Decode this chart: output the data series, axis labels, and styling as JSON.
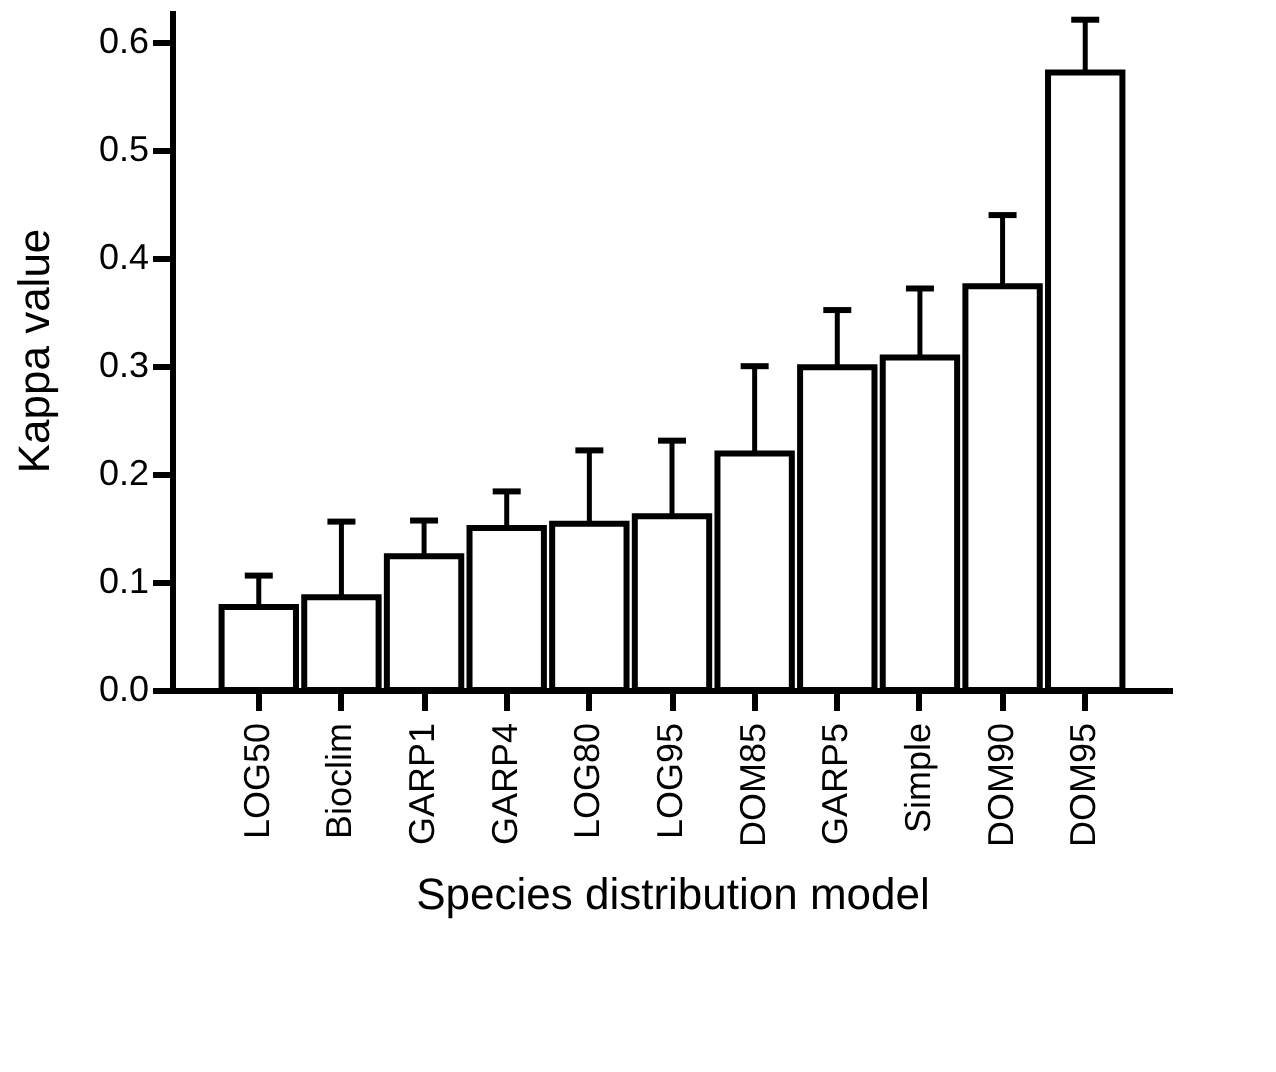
{
  "chart_data": {
    "type": "bar",
    "xlabel": "Species distribution model",
    "ylabel": "Kappa value",
    "categories": [
      "LOG50",
      "Bioclim",
      "GARP1",
      "GARP4",
      "LOG80",
      "LOG95",
      "DOM85",
      "GARP5",
      "Simple",
      "DOM90",
      "DOM95"
    ],
    "values": [
      0.077,
      0.086,
      0.124,
      0.15,
      0.154,
      0.161,
      0.219,
      0.299,
      0.308,
      0.374,
      0.572
    ],
    "errors": [
      [
        0.077,
        0.106
      ],
      [
        0.086,
        0.156
      ],
      [
        0.124,
        0.157
      ],
      [
        0.15,
        0.184
      ],
      [
        0.154,
        0.222
      ],
      [
        0.161,
        0.231
      ],
      [
        0.219,
        0.3
      ],
      [
        0.299,
        0.352
      ],
      [
        0.308,
        0.372
      ],
      [
        0.374,
        0.44
      ],
      [
        0.572,
        0.621
      ]
    ],
    "color": "#ffffff",
    "ylim": [
      0,
      0.63
    ],
    "yticks": [
      {
        "value": 0,
        "label": "0.0"
      },
      0.1,
      0.2,
      0.3,
      0.4,
      0.5,
      0.6
    ],
    "grid": false
  }
}
